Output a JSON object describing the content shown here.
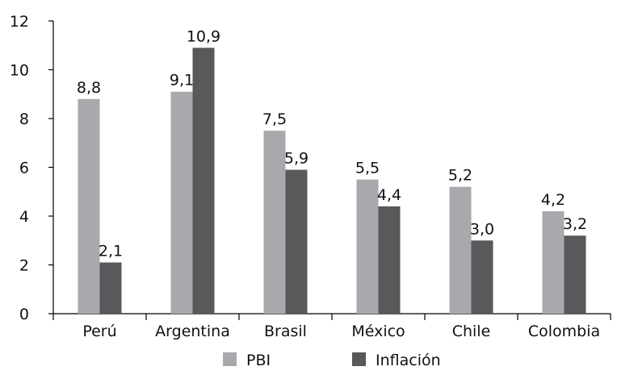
{
  "chart_data": {
    "type": "bar",
    "categories": [
      "Perú",
      "Argentina",
      "Brasil",
      "México",
      "Chile",
      "Colombia"
    ],
    "series": [
      {
        "name": "PBI",
        "values": [
          8.8,
          9.1,
          7.5,
          5.5,
          5.2,
          4.2
        ],
        "labels": [
          "8,8",
          "9,1",
          "7,5",
          "5,5",
          "5,2",
          "4,2"
        ],
        "color": "#a7a9ac"
      },
      {
        "name": "Inflación",
        "values": [
          2.1,
          10.9,
          5.9,
          4.4,
          3.0,
          3.2
        ],
        "labels": [
          "2,1",
          "10,9",
          "5,9",
          "4,4",
          "3,0",
          "3,2"
        ],
        "color": "#58595b"
      }
    ],
    "y_ticks": [
      0,
      2,
      4,
      6,
      8,
      10,
      12
    ],
    "y_tick_labels": [
      "0",
      "2",
      "4",
      "6",
      "8",
      "10",
      "12"
    ],
    "ylim": [
      0,
      12
    ],
    "title": "",
    "xlabel": "",
    "ylabel": "",
    "grid": false,
    "legend_position": "bottom-center",
    "axis_color": "#000000"
  }
}
